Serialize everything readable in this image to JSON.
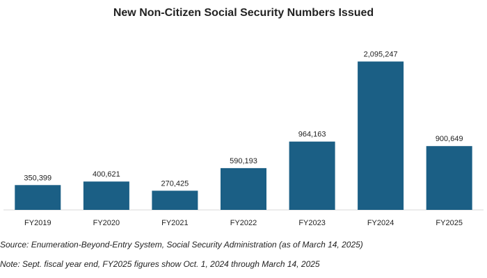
{
  "chart_data": {
    "type": "bar",
    "title": "New Non-Citizen Social Security Numbers Issued",
    "categories": [
      "FY2019",
      "FY2020",
      "FY2021",
      "FY2022",
      "FY2023",
      "FY2024",
      "FY2025"
    ],
    "values": [
      350399,
      400621,
      270425,
      590193,
      964163,
      2095247,
      900649
    ],
    "value_labels": [
      "350,399",
      "400,621",
      "270,425",
      "590,193",
      "964,163",
      "2,095,247",
      "900,649"
    ],
    "xlabel": "",
    "ylabel": "",
    "ylim": [
      0,
      2100000
    ],
    "grid": false,
    "legend": "none",
    "bar_color": "#1b5f85"
  },
  "notes": {
    "source": "Source: Enumeration-Beyond-Entry System, Social Security Administration (as of March 14, 2025)",
    "fiscal": "Note: Sept. fiscal year end, FY2025 figures show Oct. 1, 2024 through March 14, 2025"
  }
}
